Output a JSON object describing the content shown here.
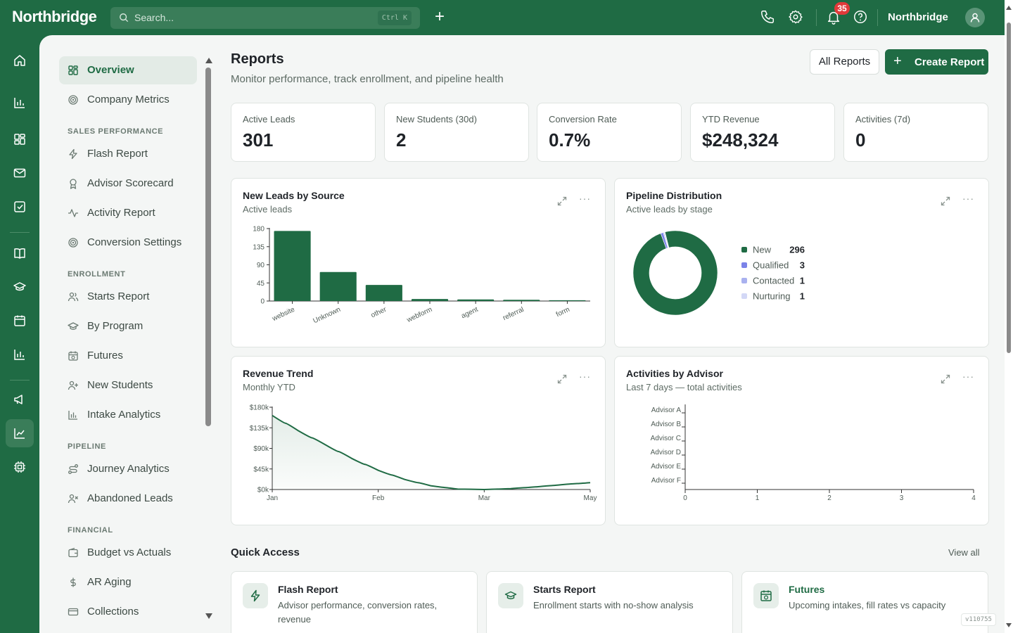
{
  "app": {
    "brand": "Northbridge",
    "org_name": "Northbridge"
  },
  "search": {
    "placeholder": "Search...",
    "shortcut": "Ctrl K"
  },
  "notifications": {
    "count": "35"
  },
  "nav": {
    "top": [
      {
        "label": "Overview",
        "icon": "grid-icon",
        "active": true
      },
      {
        "label": "Company Metrics",
        "icon": "target-icon"
      }
    ],
    "sections": [
      {
        "title": "SALES PERFORMANCE",
        "items": [
          {
            "label": "Flash Report",
            "icon": "bolt-icon"
          },
          {
            "label": "Advisor Scorecard",
            "icon": "award-icon"
          },
          {
            "label": "Activity Report",
            "icon": "activity-icon"
          },
          {
            "label": "Conversion Settings",
            "icon": "target-icon"
          }
        ]
      },
      {
        "title": "ENROLLMENT",
        "items": [
          {
            "label": "Starts Report",
            "icon": "users-icon"
          },
          {
            "label": "By Program",
            "icon": "graduation-cap-icon"
          },
          {
            "label": "Futures",
            "icon": "calendar-clock-icon"
          },
          {
            "label": "New Students",
            "icon": "user-plus-icon"
          },
          {
            "label": "Intake Analytics",
            "icon": "bar-chart-icon"
          }
        ]
      },
      {
        "title": "PIPELINE",
        "items": [
          {
            "label": "Journey Analytics",
            "icon": "route-icon"
          },
          {
            "label": "Abandoned Leads",
            "icon": "user-x-icon"
          }
        ]
      },
      {
        "title": "FINANCIAL",
        "items": [
          {
            "label": "Budget vs Actuals",
            "icon": "wallet-icon"
          },
          {
            "label": "AR Aging",
            "icon": "dollar-icon"
          },
          {
            "label": "Collections",
            "icon": "credit-card-icon"
          }
        ]
      }
    ]
  },
  "page": {
    "title": "Reports",
    "subtitle": "Monitor performance, track enrollment, and pipeline health",
    "all_reports_label": "All Reports",
    "create_report_label": "Create Report"
  },
  "stats": [
    {
      "label": "Active Leads",
      "value": "301"
    },
    {
      "label": "New Students (30d)",
      "value": "2"
    },
    {
      "label": "Conversion Rate",
      "value": "0.7%"
    },
    {
      "label": "YTD Revenue",
      "value": "$248,324"
    },
    {
      "label": "Activities (7d)",
      "value": "0"
    }
  ],
  "cards": {
    "leads_by_source": {
      "title": "New Leads by Source",
      "subtitle": "Active leads"
    },
    "pipeline": {
      "title": "Pipeline Distribution",
      "subtitle": "Active leads by stage"
    },
    "revenue": {
      "title": "Revenue Trend",
      "subtitle": "Monthly YTD"
    },
    "activities": {
      "title": "Activities by Advisor",
      "subtitle": "Last 7 days — total activities"
    },
    "more_label": "···"
  },
  "chart_data": [
    {
      "type": "bar",
      "title": "New Leads by Source",
      "subtitle": "Active leads",
      "categories": [
        "website",
        "Unknown",
        "other",
        "webform",
        "agent",
        "referral",
        "form"
      ],
      "values": [
        174,
        72,
        40,
        5,
        4,
        3,
        2
      ],
      "ylim": [
        0,
        180
      ],
      "yticks": [
        0,
        45,
        90,
        135,
        180
      ],
      "color": "#1f6b44"
    },
    {
      "type": "pie",
      "title": "Pipeline Distribution",
      "subtitle": "Active leads by stage",
      "donut": true,
      "slices": [
        {
          "label": "New",
          "value": 296,
          "color": "#1f6b44"
        },
        {
          "label": "Qualified",
          "value": 3,
          "color": "#7b83e8"
        },
        {
          "label": "Contacted",
          "value": 1,
          "color": "#a9b1ef"
        },
        {
          "label": "Nurturing",
          "value": 1,
          "color": "#d3d8f6"
        }
      ],
      "legend": "right"
    },
    {
      "type": "area",
      "title": "Revenue Trend",
      "subtitle": "Monthly YTD",
      "x": [
        "Jan",
        "Feb",
        "Mar",
        "May"
      ],
      "series": [
        {
          "values": [
            [
              0,
              162
            ],
            [
              0.5,
              128
            ],
            [
              1,
              98
            ],
            [
              1.5,
              68
            ],
            [
              2,
              42
            ],
            [
              2.5,
              22
            ],
            [
              3,
              8
            ],
            [
              3.5,
              1
            ],
            [
              4,
              0
            ],
            [
              4.5,
              2
            ],
            [
              5,
              6
            ],
            [
              5.5,
              11
            ],
            [
              6,
              15
            ]
          ]
        }
      ],
      "xtick_positions": [
        0,
        2,
        4,
        6
      ],
      "ylim": [
        0,
        180
      ],
      "yticks": [
        0,
        45,
        90,
        135,
        180
      ],
      "ytick_labels": [
        "$0k",
        "$45k",
        "$90k",
        "$135k",
        "$180k"
      ],
      "color": "#1f6b44"
    },
    {
      "type": "bar",
      "orientation": "horizontal",
      "title": "Activities by Advisor",
      "subtitle": "Last 7 days — total activities",
      "categories": [
        "Advisor A",
        "Advisor B",
        "Advisor C",
        "Advisor D",
        "Advisor E",
        "Advisor F"
      ],
      "values": [
        0,
        0,
        0,
        0,
        0,
        0
      ],
      "xlim": [
        0,
        4
      ],
      "xticks": [
        0,
        1,
        2,
        3,
        4
      ]
    }
  ],
  "quick_access": {
    "title": "Quick Access",
    "view_all": "View all",
    "items": [
      {
        "name": "Flash Report",
        "desc": "Advisor performance, conversion rates, revenue",
        "icon": "bolt-icon"
      },
      {
        "name": "Starts Report",
        "desc": "Enrollment starts with no-show analysis",
        "icon": "graduation-cap-icon"
      },
      {
        "name": "Futures",
        "desc": "Upcoming intakes, fill rates vs capacity",
        "icon": "calendar-clock-icon"
      }
    ]
  },
  "version": "v110755",
  "colors": {
    "brand": "#1f6b44",
    "badge": "#e03a3a"
  }
}
